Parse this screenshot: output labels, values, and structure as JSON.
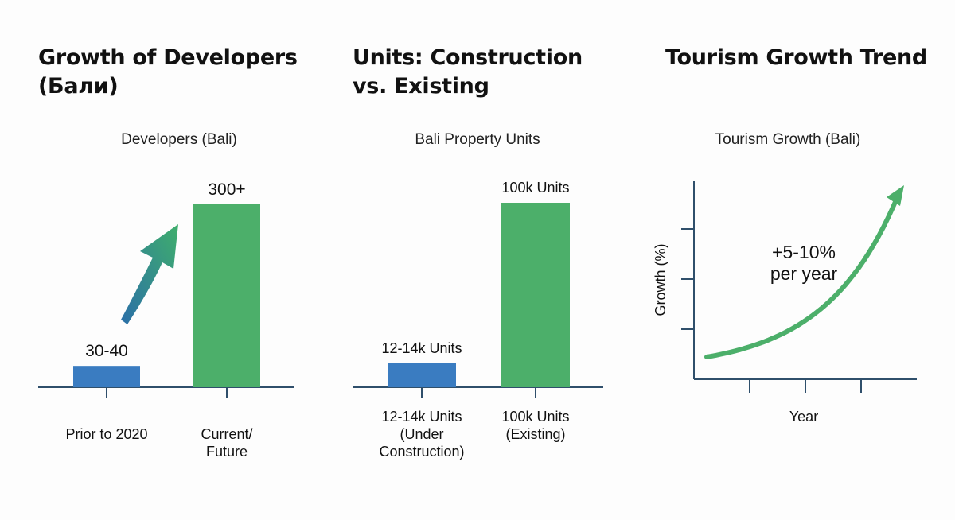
{
  "colors": {
    "blue": "#3a7cc1",
    "green": "#4caf6a",
    "axis": "#2f4f6b",
    "arrow_start": "#2b6fa8",
    "arrow_end": "#3fae6c"
  },
  "panels": [
    {
      "title_line1": "Growth of Developers",
      "title_line2": "(Бали)"
    },
    {
      "title_line1": "Units: Construction",
      "title_line2": "vs. Existing"
    },
    {
      "title_line1": "Tourism Growth Trend",
      "title_line2": ""
    }
  ],
  "chart_data": [
    {
      "type": "bar",
      "title": "Developers (Bali)",
      "categories": [
        {
          "line1": "Prior to 2020",
          "line2": "",
          "line3": ""
        },
        {
          "line1": "Current/",
          "line2": "Future",
          "line3": ""
        }
      ],
      "values": [
        35,
        300
      ],
      "data_labels": [
        "30-40",
        "300+"
      ],
      "colors": [
        "#3a7cc1",
        "#4caf6a"
      ],
      "annotation": "arrow-up-right",
      "ylim": [
        0,
        300
      ]
    },
    {
      "type": "bar",
      "title": "Bali Property Units",
      "categories": [
        {
          "line1": "12-14k Units",
          "line2": "(Under",
          "line3": "Construction)"
        },
        {
          "line1": "100k Units",
          "line2": "(Existing)",
          "line3": ""
        }
      ],
      "values": [
        13000,
        100000
      ],
      "data_labels": [
        "12-14k Units",
        "100k Units"
      ],
      "colors": [
        "#3a7cc1",
        "#4caf6a"
      ],
      "ylim": [
        0,
        100000
      ]
    },
    {
      "type": "line",
      "title": "Tourism Growth (Bali)",
      "xlabel": "Year",
      "ylabel": "Growth (%)",
      "annotation": "+5-10% per year",
      "annotation_line1": "+5-10%",
      "annotation_line2": "per year",
      "trend": "exponential-increasing",
      "color": "#4caf6a",
      "x_ticks": 3,
      "y_ticks": 3
    }
  ]
}
